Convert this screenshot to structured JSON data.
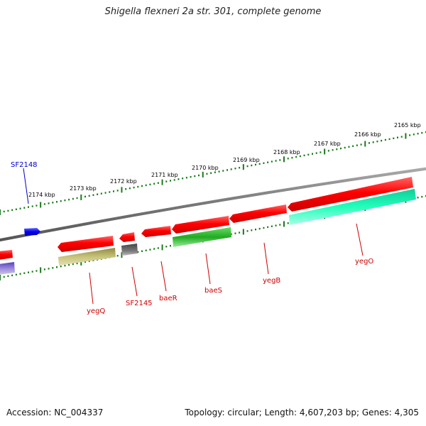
{
  "title": "Shigella flexneri 2a str. 301, complete genome",
  "accession": "Accession: NC_004337",
  "summary": "Topology: circular; Length: 4,607,203 bp; Genes: 4,305",
  "scale_labels": [
    "2165 kbp",
    "2166 kbp",
    "2167 kbp",
    "2168 kbp",
    "2169 kbp",
    "2170 kbp",
    "2171 kbp",
    "2172 kbp",
    "2173 kbp",
    "2174 kbp"
  ],
  "gene_labels": [
    {
      "name": "SF2148",
      "color": "#0000cc"
    },
    {
      "name": "yegQ",
      "color": "#cc0000"
    },
    {
      "name": "SF2145",
      "color": "#cc0000"
    },
    {
      "name": "baeR",
      "color": "#cc0000"
    },
    {
      "name": "baeS",
      "color": "#cc0000"
    },
    {
      "name": "yegB",
      "color": "#cc0000"
    },
    {
      "name": "yegO",
      "color": "#cc0000"
    }
  ],
  "colors": {
    "backbone": "#888888",
    "scale": "#1a7a1a",
    "gene_forward": "#ee1111",
    "gene_blue": "#1111ee",
    "feature_olive": "#bdb86a",
    "feature_gray": "#666666",
    "feature_green": "#33bb33",
    "feature_aqua": "#22eeaa",
    "feature_purple": "#7766cc"
  }
}
